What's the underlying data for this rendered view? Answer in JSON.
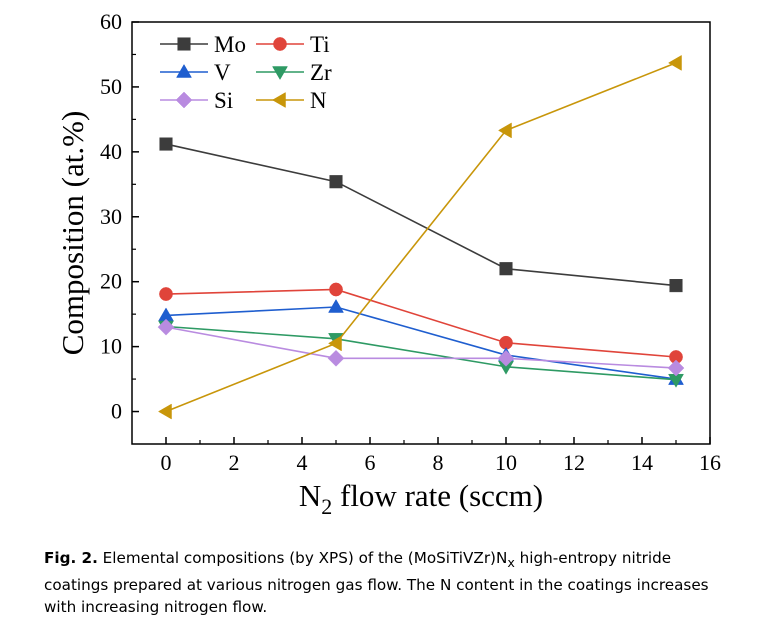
{
  "chart_data": {
    "type": "line",
    "xlabel": "N",
    "xlabel_sub": "2",
    "xlabel_rest": " flow rate (sccm)",
    "ylabel": "Composition (at.%)",
    "xlim": [
      -1,
      16
    ],
    "ylim": [
      -5,
      60
    ],
    "xticks": [
      "0",
      "2",
      "4",
      "6",
      "8",
      "10",
      "12",
      "14",
      "16"
    ],
    "yticks": [
      "0",
      "10",
      "20",
      "30",
      "40",
      "50",
      "60"
    ],
    "x": [
      0,
      5,
      10,
      15
    ],
    "series": [
      {
        "name": "Mo",
        "color": "#3c3c3c",
        "marker": "square",
        "values": [
          41.2,
          35.4,
          22.0,
          19.4
        ]
      },
      {
        "name": "Ti",
        "color": "#e0443a",
        "marker": "circle",
        "values": [
          18.1,
          18.8,
          10.6,
          8.4
        ]
      },
      {
        "name": "V",
        "color": "#1f5ecf",
        "marker": "triangle-up",
        "values": [
          14.8,
          16.1,
          8.7,
          5.0
        ]
      },
      {
        "name": "Zr",
        "color": "#2e9a64",
        "marker": "triangle-down",
        "values": [
          13.1,
          11.2,
          6.9,
          4.9
        ]
      },
      {
        "name": "Si",
        "color": "#b98be0",
        "marker": "diamond",
        "values": [
          13.0,
          8.2,
          8.2,
          6.7
        ]
      },
      {
        "name": "N",
        "color": "#c8960a",
        "marker": "triangle-left",
        "values": [
          0.0,
          10.5,
          43.3,
          53.7
        ]
      }
    ],
    "legend_position": "top-left",
    "grid": false
  },
  "caption": {
    "label": "Fig. 2.",
    "text_1": " Elemental compositions (by XPS) of the (MoSiTiVZr)N",
    "subscript": "x",
    "text_2": " high-entropy nitride coatings prepared at various nitrogen gas flow. The N content in the coatings increases with increasing nitrogen flow."
  }
}
